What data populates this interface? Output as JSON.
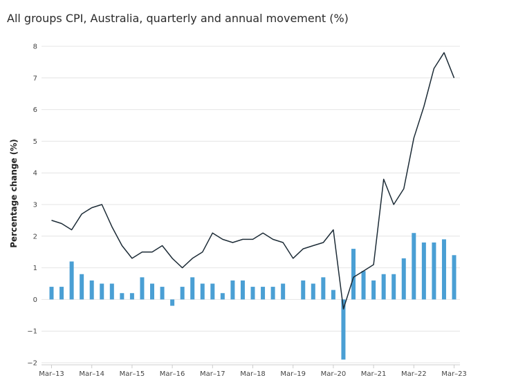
{
  "chart_data": {
    "type": "bar",
    "title": "All groups CPI, Australia, quarterly and annual movement (%)",
    "xlabel": "",
    "ylabel": "Percentage change (%)",
    "ylim": [
      -2,
      8
    ],
    "yticks": [
      "−2",
      "−1",
      "0",
      "1",
      "2",
      "3",
      "4",
      "5",
      "6",
      "7",
      "8"
    ],
    "grid": true,
    "x_tick_labels": [
      "Mar–13",
      "Mar–14",
      "Mar–15",
      "Mar–16",
      "Mar–17",
      "Mar–18",
      "Mar–19",
      "Mar–20",
      "Mar–21",
      "Mar–22",
      "Mar–23"
    ],
    "colors": {
      "bars": "#4a9fd4",
      "line": "#1c2b36",
      "grid": "#e4e4e4"
    },
    "series": [
      {
        "type": "bar",
        "values": [
          0.4,
          0.4,
          1.2,
          0.8,
          0.6,
          0.5,
          0.5,
          0.2,
          0.2,
          0.7,
          0.5,
          0.4,
          -0.2,
          0.4,
          0.7,
          0.5,
          0.5,
          0.2,
          0.6,
          0.6,
          0.4,
          0.4,
          0.4,
          0.5,
          0.0,
          0.6,
          0.5,
          0.7,
          0.3,
          -1.9,
          1.6,
          0.9,
          0.6,
          0.8,
          0.8,
          1.3,
          2.1,
          1.8,
          1.8,
          1.9,
          1.4
        ]
      },
      {
        "type": "line",
        "values": [
          2.5,
          2.4,
          2.2,
          2.7,
          2.9,
          3.0,
          2.3,
          1.7,
          1.3,
          1.5,
          1.5,
          1.7,
          1.3,
          1.0,
          1.3,
          1.5,
          2.1,
          1.9,
          1.8,
          1.9,
          1.9,
          2.1,
          1.9,
          1.8,
          1.3,
          1.6,
          1.7,
          1.8,
          2.2,
          -0.3,
          0.7,
          0.9,
          1.1,
          3.8,
          3.0,
          3.5,
          5.1,
          6.1,
          7.3,
          7.8,
          7.0
        ]
      }
    ]
  }
}
